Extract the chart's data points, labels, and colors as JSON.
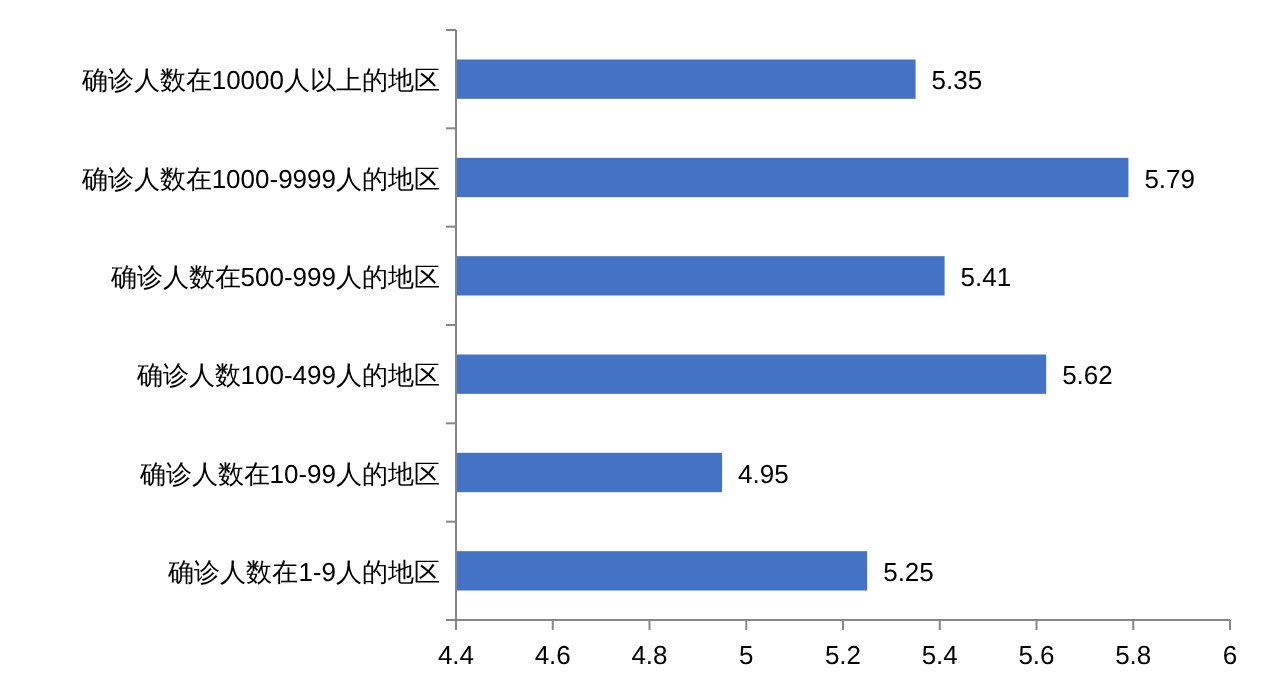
{
  "chart_data": {
    "type": "bar",
    "orientation": "horizontal",
    "categories": [
      "确诊人数在10000人以上的地区",
      "确诊人数在1000-9999人的地区",
      "确诊人数在500-999人的地区",
      "确诊人数100-499人的地区",
      "确诊人数在10-99人的地区",
      "确诊人数在1-9人的地区"
    ],
    "values": [
      5.35,
      5.79,
      5.41,
      5.62,
      4.95,
      5.25
    ],
    "color": "#4472c4",
    "xlim": [
      4.4,
      6
    ],
    "xticks": [
      4.4,
      4.6,
      4.8,
      5,
      5.2,
      5.4,
      5.6,
      5.8,
      6
    ],
    "data_labels": true,
    "grid": false
  }
}
